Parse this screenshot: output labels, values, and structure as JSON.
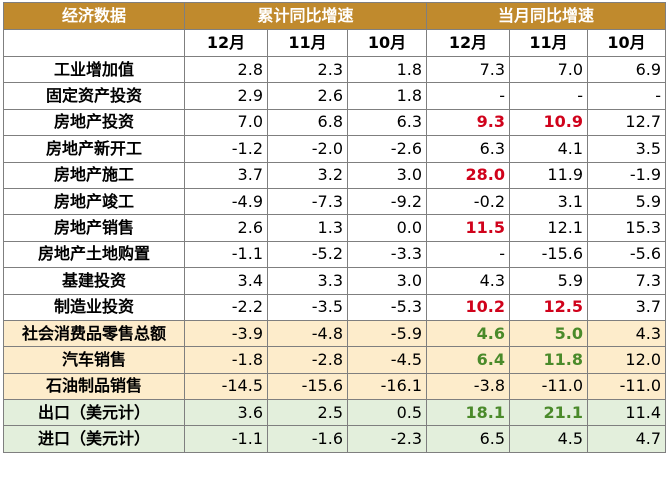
{
  "table": {
    "group_headers": {
      "indicator": "经济数据",
      "cumulative": "累计同比增速",
      "monthly": "当月同比增速"
    },
    "months": [
      "12月",
      "11月",
      "10月",
      "12月",
      "11月",
      "10月"
    ],
    "colors": {
      "header_bg": "#c08a2d",
      "header_text": "#ffffff",
      "cream_row_bg": "#fdeccb",
      "green_row_bg": "#e3efdc",
      "highlight_red": "#d0021b",
      "highlight_green": "#4a8a2a",
      "border": "#7f7f7f"
    },
    "rows": [
      {
        "label": "工业增加值",
        "group": "white",
        "values": [
          "2.8",
          "2.3",
          "1.8",
          "7.3",
          "7.0",
          "6.9"
        ],
        "highlight": [
          "",
          "",
          "",
          "",
          "",
          ""
        ]
      },
      {
        "label": "固定资产投资",
        "group": "white",
        "values": [
          "2.9",
          "2.6",
          "1.8",
          "-",
          "-",
          "-"
        ],
        "highlight": [
          "",
          "",
          "",
          "",
          "",
          ""
        ]
      },
      {
        "label": "房地产投资",
        "group": "white",
        "values": [
          "7.0",
          "6.8",
          "6.3",
          "9.3",
          "10.9",
          "12.7"
        ],
        "highlight": [
          "",
          "",
          "",
          "red",
          "red",
          ""
        ]
      },
      {
        "label": "房地产新开工",
        "group": "white",
        "values": [
          "-1.2",
          "-2.0",
          "-2.6",
          "6.3",
          "4.1",
          "3.5"
        ],
        "highlight": [
          "",
          "",
          "",
          "",
          "",
          ""
        ]
      },
      {
        "label": "房地产施工",
        "group": "white",
        "values": [
          "3.7",
          "3.2",
          "3.0",
          "28.0",
          "11.9",
          "-1.9"
        ],
        "highlight": [
          "",
          "",
          "",
          "red",
          "",
          ""
        ]
      },
      {
        "label": "房地产竣工",
        "group": "white",
        "values": [
          "-4.9",
          "-7.3",
          "-9.2",
          "-0.2",
          "3.1",
          "5.9"
        ],
        "highlight": [
          "",
          "",
          "",
          "",
          "",
          ""
        ]
      },
      {
        "label": "房地产销售",
        "group": "white",
        "values": [
          "2.6",
          "1.3",
          "0.0",
          "11.5",
          "12.1",
          "15.3"
        ],
        "highlight": [
          "",
          "",
          "",
          "red",
          "",
          ""
        ]
      },
      {
        "label": "房地产土地购置",
        "group": "white",
        "values": [
          "-1.1",
          "-5.2",
          "-3.3",
          "-",
          "-15.6",
          "-5.6"
        ],
        "highlight": [
          "",
          "",
          "",
          "",
          "",
          ""
        ]
      },
      {
        "label": "基建投资",
        "group": "white",
        "values": [
          "3.4",
          "3.3",
          "3.0",
          "4.3",
          "5.9",
          "7.3"
        ],
        "highlight": [
          "",
          "",
          "",
          "",
          "",
          ""
        ]
      },
      {
        "label": "制造业投资",
        "group": "white",
        "values": [
          "-2.2",
          "-3.5",
          "-5.3",
          "10.2",
          "12.5",
          "3.7"
        ],
        "highlight": [
          "",
          "",
          "",
          "red",
          "red",
          ""
        ]
      },
      {
        "label": "社会消费品零售总额",
        "group": "cream",
        "values": [
          "-3.9",
          "-4.8",
          "-5.9",
          "4.6",
          "5.0",
          "4.3"
        ],
        "highlight": [
          "",
          "",
          "",
          "green",
          "green",
          ""
        ]
      },
      {
        "label": "汽车销售",
        "group": "cream",
        "values": [
          "-1.8",
          "-2.8",
          "-4.5",
          "6.4",
          "11.8",
          "12.0"
        ],
        "highlight": [
          "",
          "",
          "",
          "green",
          "green",
          ""
        ]
      },
      {
        "label": "石油制品销售",
        "group": "cream",
        "values": [
          "-14.5",
          "-15.6",
          "-16.1",
          "-3.8",
          "-11.0",
          "-11.0"
        ],
        "highlight": [
          "",
          "",
          "",
          "",
          "",
          ""
        ]
      },
      {
        "label": "出口（美元计）",
        "group": "green",
        "values": [
          "3.6",
          "2.5",
          "0.5",
          "18.1",
          "21.1",
          "11.4"
        ],
        "highlight": [
          "",
          "",
          "",
          "green",
          "green",
          ""
        ]
      },
      {
        "label": "进口（美元计）",
        "group": "green",
        "values": [
          "-1.1",
          "-1.6",
          "-2.3",
          "6.5",
          "4.5",
          "4.7"
        ],
        "highlight": [
          "",
          "",
          "",
          "",
          "",
          ""
        ]
      }
    ]
  }
}
